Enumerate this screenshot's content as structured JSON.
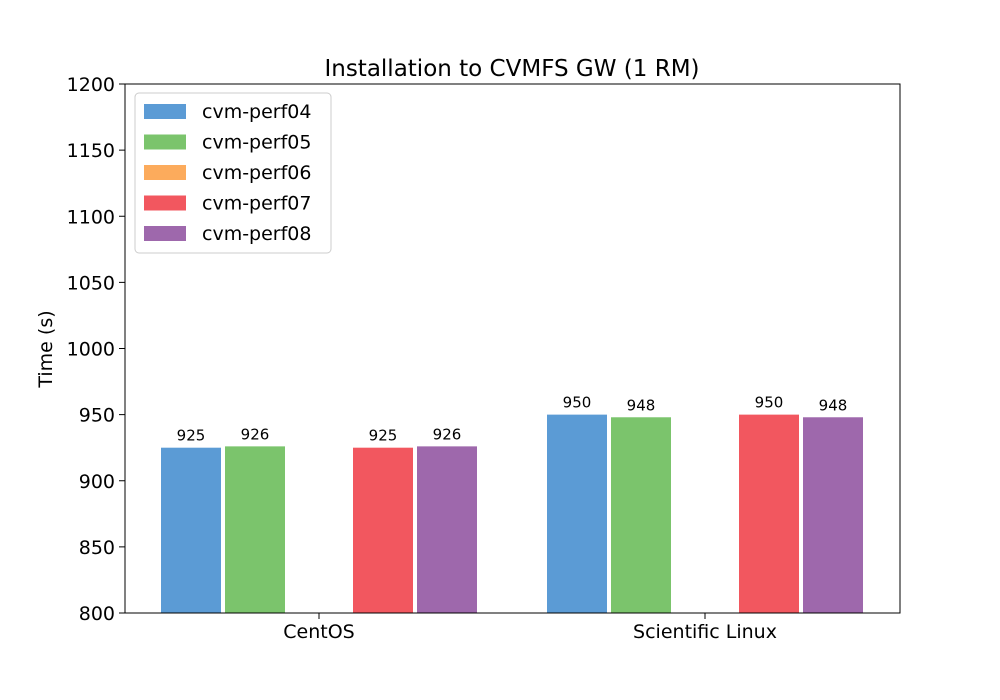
{
  "chart_data": {
    "type": "bar",
    "title": "Installation to CVMFS GW (1 RM)",
    "xlabel": "",
    "ylabel": "Time (s)",
    "ylim": [
      800,
      1200
    ],
    "yticks": [
      800,
      850,
      900,
      950,
      1000,
      1050,
      1100,
      1150,
      1200
    ],
    "categories": [
      "CentOS",
      "Scientific Linux"
    ],
    "legend_position": "top-left",
    "grid": false,
    "series": [
      {
        "name": "cvm-perf04",
        "color": "#5b9bd5",
        "values": [
          925,
          950
        ],
        "labels": [
          "925",
          "950"
        ]
      },
      {
        "name": "cvm-perf05",
        "color": "#7bc46c",
        "values": [
          926,
          948
        ],
        "labels": [
          "926",
          "948"
        ]
      },
      {
        "name": "cvm-perf06",
        "color": "#fcab5c",
        "values": [
          null,
          null
        ],
        "labels": [
          "",
          ""
        ]
      },
      {
        "name": "cvm-perf07",
        "color": "#f2575f",
        "values": [
          925,
          950
        ],
        "labels": [
          "925",
          "950"
        ]
      },
      {
        "name": "cvm-perf08",
        "color": "#9e68ac",
        "values": [
          926,
          948
        ],
        "labels": [
          "926",
          "948"
        ]
      }
    ]
  }
}
